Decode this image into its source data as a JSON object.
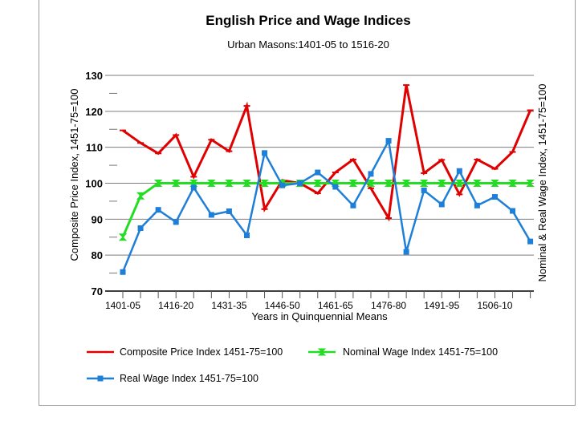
{
  "chart_data": {
    "type": "line",
    "title": "English Price and Wage Indices",
    "subtitle": "Urban Masons:1401-05 to 1516-20",
    "xlabel": "Years in Quinquennial Means",
    "ylabel": "Composite Price Index, 1451-75=100",
    "y2label": "Nominal & Real Wage Index, 1451-75=100",
    "ylim": [
      70,
      130
    ],
    "yticks": [
      70,
      80,
      90,
      100,
      110,
      120,
      130
    ],
    "grid": true,
    "legend_position": "bottom",
    "xtick_labels": [
      "1401-05",
      "1416-20",
      "1431-35",
      "1446-50",
      "1461-65",
      "1476-80",
      "1491-95",
      "1506-10"
    ],
    "series": [
      {
        "name": "Composite Price Index 1451-75=100",
        "color": "#e00000",
        "marker": "dash",
        "values": [
          114.7,
          111.2,
          108.3,
          113.4,
          101.8,
          112.1,
          108.9,
          121.5,
          92.8,
          100.8,
          100.0,
          97.2,
          103.0,
          106.6,
          98.6,
          90.3,
          127.3,
          102.8,
          106.5,
          96.9,
          106.6,
          104.0,
          108.7,
          120.3
        ]
      },
      {
        "name": "Nominal Wage Index 1451-75=100",
        "color": "#22dd22",
        "marker": "bowtie",
        "values": [
          85.0,
          96.5,
          100.0,
          100.0,
          100.0,
          100.0,
          100.0,
          100.0,
          100.0,
          100.0,
          100.0,
          100.0,
          100.0,
          100.0,
          100.0,
          100.0,
          100.0,
          100.0,
          100.0,
          100.0,
          100.0,
          100.0,
          100.0,
          100.0
        ]
      },
      {
        "name": "Real Wage Index 1451-75=100",
        "color": "#1e7fd8",
        "marker": "square",
        "values": [
          75.3,
          87.5,
          92.6,
          89.2,
          98.8,
          91.2,
          92.2,
          85.5,
          108.4,
          99.4,
          100.0,
          103.0,
          99.0,
          93.8,
          102.6,
          111.8,
          80.9,
          98.0,
          94.1,
          103.4,
          93.8,
          96.2,
          92.3,
          83.8
        ]
      }
    ]
  }
}
